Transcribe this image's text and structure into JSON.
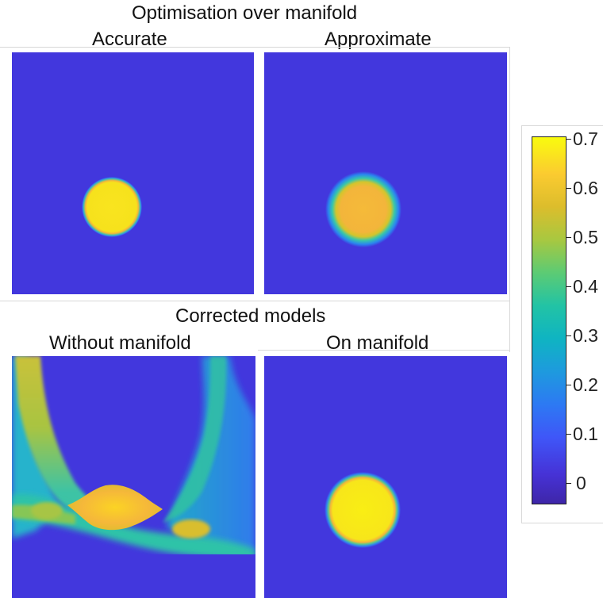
{
  "top_title": "Optimisation over manifold",
  "bottom_title": "Corrected models",
  "panels": {
    "accurate": "Accurate",
    "approximate": "Approximate",
    "without_manifold": "Without manifold",
    "on_manifold": "On manifold"
  },
  "colorbar": {
    "ticks": [
      "0.7",
      "0.6",
      "0.5",
      "0.4",
      "0.3",
      "0.2",
      "0.1",
      "0"
    ],
    "colormap": "parula",
    "min": -0.05,
    "max": 0.7
  },
  "colors": {
    "background_blue": "#4237dd",
    "inclusion_yellow": "#f9f00f",
    "inclusion_orange": "#f5b43c"
  }
}
